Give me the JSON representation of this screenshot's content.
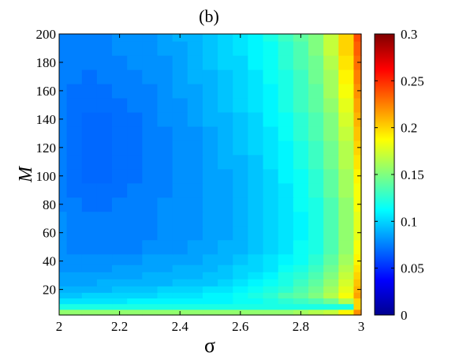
{
  "chart_data": {
    "type": "heatmap",
    "title": "(b)",
    "xlabel": "σ",
    "ylabel": "M",
    "xlim": [
      2,
      3
    ],
    "ylim": [
      2,
      200
    ],
    "x_ticks": [
      "2",
      "2.2",
      "2.4",
      "2.6",
      "2.8",
      "3"
    ],
    "y_ticks": [
      "20",
      "40",
      "60",
      "80",
      "100",
      "120",
      "140",
      "160",
      "180",
      "200"
    ],
    "colorbar": {
      "range": [
        0,
        0.3
      ],
      "ticks": [
        "0",
        "0.05",
        "0.1",
        "0.15",
        "0.2",
        "0.25",
        "0.3"
      ],
      "colormap": "jet"
    },
    "x": [
      2.0,
      2.05,
      2.1,
      2.15,
      2.2,
      2.25,
      2.3,
      2.35,
      2.4,
      2.45,
      2.5,
      2.55,
      2.6,
      2.65,
      2.7,
      2.75,
      2.8,
      2.85,
      2.9,
      2.95,
      3.0
    ],
    "y": [
      4,
      8,
      12,
      16,
      20,
      25,
      30,
      35,
      40,
      50,
      60,
      70,
      80,
      90,
      100,
      110,
      120,
      130,
      140,
      150,
      160,
      170,
      180,
      190,
      200
    ],
    "z": [
      [
        0.155,
        0.155,
        0.155,
        0.155,
        0.155,
        0.155,
        0.155,
        0.155,
        0.155,
        0.155,
        0.155,
        0.155,
        0.155,
        0.155,
        0.155,
        0.155,
        0.16,
        0.165,
        0.17,
        0.19,
        0.22
      ],
      [
        0.12,
        0.12,
        0.12,
        0.12,
        0.12,
        0.12,
        0.12,
        0.12,
        0.12,
        0.12,
        0.12,
        0.12,
        0.12,
        0.12,
        0.12,
        0.12,
        0.12,
        0.12,
        0.12,
        0.12,
        0.2
      ],
      [
        0.105,
        0.105,
        0.105,
        0.105,
        0.105,
        0.11,
        0.11,
        0.11,
        0.11,
        0.11,
        0.11,
        0.11,
        0.115,
        0.115,
        0.12,
        0.125,
        0.13,
        0.135,
        0.145,
        0.165,
        0.2
      ],
      [
        0.095,
        0.095,
        0.1,
        0.1,
        0.1,
        0.1,
        0.1,
        0.105,
        0.105,
        0.105,
        0.11,
        0.11,
        0.115,
        0.12,
        0.125,
        0.135,
        0.14,
        0.15,
        0.165,
        0.185,
        0.215
      ],
      [
        0.09,
        0.09,
        0.09,
        0.09,
        0.095,
        0.095,
        0.095,
        0.1,
        0.1,
        0.1,
        0.105,
        0.105,
        0.11,
        0.115,
        0.12,
        0.125,
        0.135,
        0.145,
        0.16,
        0.18,
        0.21
      ],
      [
        0.085,
        0.085,
        0.085,
        0.09,
        0.09,
        0.09,
        0.09,
        0.09,
        0.095,
        0.095,
        0.095,
        0.1,
        0.105,
        0.11,
        0.115,
        0.12,
        0.13,
        0.14,
        0.155,
        0.175,
        0.205
      ],
      [
        0.085,
        0.085,
        0.085,
        0.085,
        0.085,
        0.085,
        0.09,
        0.09,
        0.09,
        0.09,
        0.095,
        0.095,
        0.1,
        0.105,
        0.11,
        0.12,
        0.125,
        0.135,
        0.15,
        0.17,
        0.2
      ],
      [
        0.08,
        0.08,
        0.08,
        0.08,
        0.085,
        0.085,
        0.085,
        0.085,
        0.09,
        0.09,
        0.09,
        0.095,
        0.1,
        0.1,
        0.105,
        0.115,
        0.12,
        0.13,
        0.145,
        0.165,
        0.195
      ],
      [
        0.08,
        0.08,
        0.08,
        0.08,
        0.08,
        0.08,
        0.085,
        0.085,
        0.085,
        0.085,
        0.09,
        0.09,
        0.095,
        0.1,
        0.105,
        0.11,
        0.115,
        0.125,
        0.14,
        0.16,
        0.19
      ],
      [
        0.08,
        0.075,
        0.075,
        0.075,
        0.075,
        0.075,
        0.08,
        0.08,
        0.08,
        0.085,
        0.085,
        0.09,
        0.09,
        0.095,
        0.1,
        0.105,
        0.115,
        0.12,
        0.135,
        0.155,
        0.185
      ],
      [
        0.08,
        0.075,
        0.075,
        0.075,
        0.075,
        0.075,
        0.075,
        0.08,
        0.08,
        0.08,
        0.085,
        0.085,
        0.09,
        0.095,
        0.1,
        0.105,
        0.11,
        0.12,
        0.135,
        0.155,
        0.18
      ],
      [
        0.08,
        0.075,
        0.075,
        0.075,
        0.075,
        0.075,
        0.075,
        0.08,
        0.08,
        0.08,
        0.085,
        0.085,
        0.09,
        0.095,
        0.1,
        0.105,
        0.11,
        0.12,
        0.135,
        0.155,
        0.18
      ],
      [
        0.075,
        0.075,
        0.07,
        0.07,
        0.075,
        0.075,
        0.075,
        0.08,
        0.08,
        0.08,
        0.085,
        0.085,
        0.09,
        0.095,
        0.1,
        0.105,
        0.115,
        0.12,
        0.135,
        0.155,
        0.185
      ],
      [
        0.075,
        0.07,
        0.07,
        0.07,
        0.07,
        0.075,
        0.075,
        0.075,
        0.08,
        0.08,
        0.085,
        0.085,
        0.09,
        0.095,
        0.1,
        0.105,
        0.115,
        0.125,
        0.14,
        0.16,
        0.185
      ],
      [
        0.075,
        0.07,
        0.068,
        0.068,
        0.07,
        0.07,
        0.075,
        0.075,
        0.08,
        0.08,
        0.085,
        0.085,
        0.09,
        0.095,
        0.1,
        0.11,
        0.115,
        0.125,
        0.14,
        0.16,
        0.19
      ],
      [
        0.075,
        0.07,
        0.068,
        0.068,
        0.07,
        0.07,
        0.075,
        0.075,
        0.08,
        0.08,
        0.085,
        0.09,
        0.09,
        0.095,
        0.105,
        0.11,
        0.12,
        0.13,
        0.145,
        0.165,
        0.195
      ],
      [
        0.075,
        0.07,
        0.068,
        0.068,
        0.07,
        0.07,
        0.075,
        0.075,
        0.08,
        0.08,
        0.085,
        0.09,
        0.095,
        0.1,
        0.105,
        0.11,
        0.12,
        0.13,
        0.145,
        0.165,
        0.2
      ],
      [
        0.075,
        0.07,
        0.068,
        0.068,
        0.07,
        0.07,
        0.075,
        0.075,
        0.08,
        0.08,
        0.085,
        0.09,
        0.095,
        0.1,
        0.105,
        0.115,
        0.125,
        0.135,
        0.15,
        0.17,
        0.205
      ],
      [
        0.075,
        0.07,
        0.068,
        0.068,
        0.07,
        0.07,
        0.075,
        0.08,
        0.08,
        0.085,
        0.09,
        0.09,
        0.095,
        0.1,
        0.11,
        0.115,
        0.125,
        0.135,
        0.15,
        0.175,
        0.21
      ],
      [
        0.075,
        0.07,
        0.07,
        0.07,
        0.07,
        0.075,
        0.075,
        0.08,
        0.08,
        0.085,
        0.09,
        0.095,
        0.1,
        0.105,
        0.11,
        0.12,
        0.13,
        0.14,
        0.155,
        0.18,
        0.215
      ],
      [
        0.075,
        0.07,
        0.07,
        0.07,
        0.075,
        0.075,
        0.075,
        0.08,
        0.085,
        0.085,
        0.09,
        0.095,
        0.1,
        0.105,
        0.11,
        0.12,
        0.13,
        0.14,
        0.16,
        0.185,
        0.22
      ],
      [
        0.075,
        0.075,
        0.07,
        0.075,
        0.075,
        0.075,
        0.08,
        0.08,
        0.085,
        0.09,
        0.09,
        0.095,
        0.1,
        0.105,
        0.115,
        0.12,
        0.13,
        0.145,
        0.16,
        0.19,
        0.225
      ],
      [
        0.075,
        0.075,
        0.075,
        0.075,
        0.075,
        0.08,
        0.08,
        0.08,
        0.085,
        0.09,
        0.095,
        0.1,
        0.1,
        0.11,
        0.115,
        0.125,
        0.135,
        0.145,
        0.165,
        0.195,
        0.23
      ],
      [
        0.075,
        0.075,
        0.075,
        0.075,
        0.08,
        0.08,
        0.08,
        0.085,
        0.085,
        0.09,
        0.095,
        0.1,
        0.105,
        0.11,
        0.115,
        0.125,
        0.135,
        0.15,
        0.17,
        0.2,
        0.235
      ],
      [
        0.075,
        0.075,
        0.075,
        0.075,
        0.08,
        0.08,
        0.08,
        0.085,
        0.09,
        0.09,
        0.095,
        0.1,
        0.105,
        0.11,
        0.12,
        0.13,
        0.14,
        0.15,
        0.17,
        0.2,
        0.24
      ]
    ]
  }
}
